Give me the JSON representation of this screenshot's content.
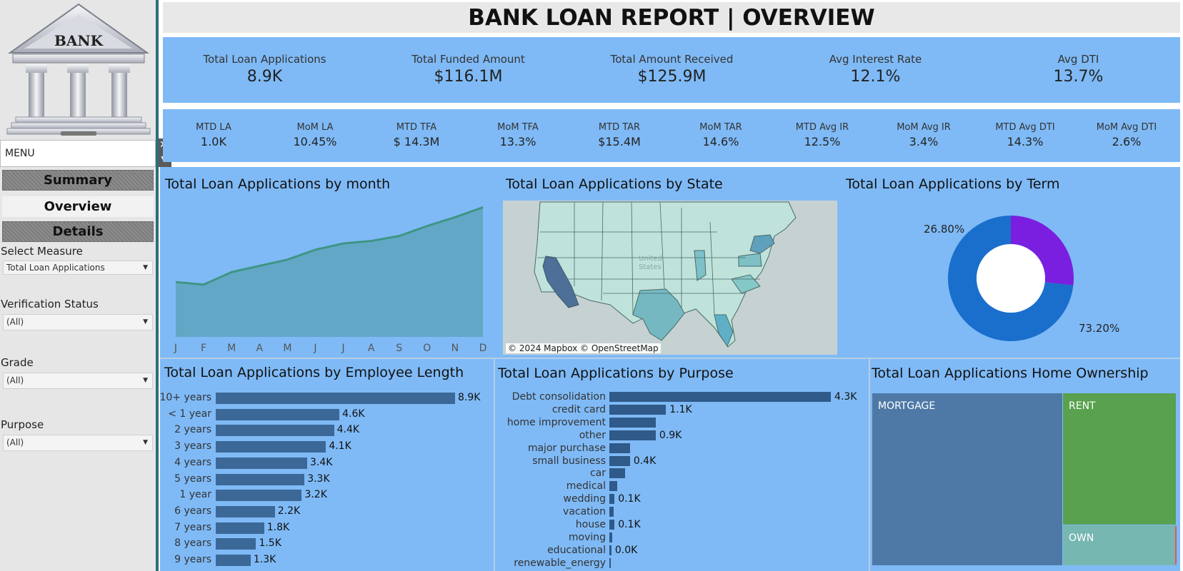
{
  "logo_text": "BANK",
  "menu": {
    "label": "MENU",
    "close": "✕"
  },
  "nav": {
    "summary": "Summary",
    "overview": "Overview",
    "details": "Details"
  },
  "filters": [
    {
      "label": "Select Measure",
      "value": "Total Loan Applications"
    },
    {
      "label": "Verification Status",
      "value": "(All)"
    },
    {
      "label": "Grade",
      "value": "(All)"
    },
    {
      "label": "Purpose",
      "value": "(All)"
    }
  ],
  "header": {
    "title": "BANK LOAN REPORT | OVERVIEW"
  },
  "kpis": [
    {
      "label": "Total Loan Applications",
      "value": "8.9K"
    },
    {
      "label": "Total Funded Amount",
      "value": "$116.1M"
    },
    {
      "label": "Total Amount Received",
      "value": "$125.9M"
    },
    {
      "label": "Avg Interest Rate",
      "value": "12.1%"
    },
    {
      "label": "Avg DTI",
      "value": "13.7%"
    }
  ],
  "mtd": [
    {
      "label": "MTD LA",
      "value": "1.0K"
    },
    {
      "label": "MoM LA",
      "value": "10.45%"
    },
    {
      "label": "MTD TFA",
      "value": "$ 14.3M"
    },
    {
      "label": "MoM TFA",
      "value": "13.3%"
    },
    {
      "label": "MTD TAR",
      "value": "$15.4M"
    },
    {
      "label": "MoM TAR",
      "value": "14.6%"
    },
    {
      "label": "MTD Avg IR",
      "value": "12.5%"
    },
    {
      "label": "MoM Avg IR",
      "value": "3.4%"
    },
    {
      "label": "MTD Avg DTI",
      "value": "14.3%"
    },
    {
      "label": "MoM Avg DTI",
      "value": "2.6%"
    }
  ],
  "panels": {
    "month": "Total Loan Applications by month",
    "state": "Total Loan Applications by State",
    "term": "Total Loan Applications by Term",
    "employee": "Total Loan Applications by Employee Length",
    "purpose": "Total Loan Applications by Purpose",
    "home": "Total Loan Applications Home Ownership"
  },
  "map": {
    "credit": "© 2024 Mapbox © OpenStreetMap"
  },
  "colors": {
    "accent_bg": "#7fbaf6",
    "bar": "#3b6897",
    "area": "#62a8c6",
    "area_line": "#3f9585"
  },
  "chart_data": [
    {
      "type": "area",
      "categories": [
        "J",
        "F",
        "M",
        "A",
        "M",
        "J",
        "J",
        "A",
        "S",
        "O",
        "N",
        "D"
      ],
      "values": [
        0.44,
        0.42,
        0.52,
        0.57,
        0.62,
        0.7,
        0.75,
        0.77,
        0.81,
        0.89,
        0.96,
        1.04
      ],
      "ylim": [
        0,
        1.1
      ]
    },
    {
      "type": "pie",
      "labels": [
        "26.80%",
        "73.20%"
      ],
      "values": [
        26.8,
        73.2
      ],
      "colors": [
        "#7a1fe0",
        "#1a6fcc"
      ]
    },
    {
      "type": "bar",
      "categories": [
        "10+ years",
        "< 1 year",
        "2 years",
        "3 years",
        "4 years",
        "5 years",
        "1 year",
        "6 years",
        "7 years",
        "8 years",
        "9 years"
      ],
      "values": [
        8.9,
        4.6,
        4.4,
        4.1,
        3.4,
        3.3,
        3.2,
        2.2,
        1.8,
        1.5,
        1.3
      ],
      "data_labels": [
        "8.9K",
        "4.6K",
        "4.4K",
        "4.1K",
        "3.4K",
        "3.3K",
        "3.2K",
        "2.2K",
        "1.8K",
        "1.5K",
        "1.3K"
      ]
    },
    {
      "type": "bar",
      "categories": [
        "Debt consolidation",
        "credit card",
        "home improvement",
        "other",
        "major purchase",
        "small business",
        "car",
        "medical",
        "wedding",
        "vacation",
        "house",
        "moving",
        "educational",
        "renewable_energy"
      ],
      "values": [
        4.3,
        1.1,
        0.9,
        0.9,
        0.4,
        0.4,
        0.3,
        0.15,
        0.1,
        0.08,
        0.1,
        0.06,
        0.04,
        0.02
      ],
      "data_labels": [
        "4.3K",
        "1.1K",
        "",
        "0.9K",
        "",
        "0.4K",
        "",
        "",
        "0.1K",
        "",
        "0.1K",
        "",
        "0.0K",
        ""
      ]
    },
    {
      "type": "treemap",
      "labels": [
        "MORTGAGE",
        "RENT",
        "OWN"
      ],
      "colors": [
        "#4e79a7",
        "#59a14f",
        "#76b7b2"
      ]
    }
  ]
}
